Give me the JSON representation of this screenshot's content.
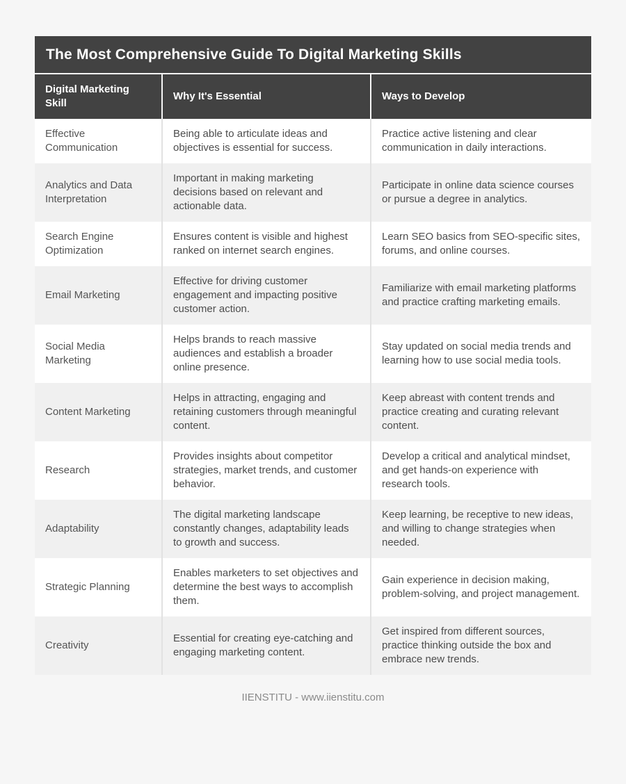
{
  "title": "The Most Comprehensive Guide To Digital Marketing Skills",
  "columns": [
    "Digital Marketing Skill",
    "Why It's Essential",
    "Ways to Develop"
  ],
  "rows": [
    {
      "skill": "Effective Communication",
      "essential": "Being able to articulate ideas and objectives is essential for success.",
      "develop": "Practice active listening and clear communication in daily interactions."
    },
    {
      "skill": "Analytics and Data Interpretation",
      "essential": "Important in making marketing decisions based on relevant and actionable data.",
      "develop": "Participate in online data science courses or pursue a degree in analytics."
    },
    {
      "skill": "Search Engine Optimization",
      "essential": "Ensures content is visible and highest ranked on internet search engines.",
      "develop": "Learn SEO basics from SEO-specific sites, forums, and online courses."
    },
    {
      "skill": "Email Marketing",
      "essential": "Effective for driving customer engagement and impacting positive customer action.",
      "develop": "Familiarize with email marketing platforms and practice crafting marketing emails."
    },
    {
      "skill": "Social Media Marketing",
      "essential": "Helps brands to reach massive audiences and establish a broader online presence.",
      "develop": "Stay updated on social media trends and learning how to use social media tools."
    },
    {
      "skill": "Content Marketing",
      "essential": "Helps in attracting, engaging and retaining customers through meaningful content.",
      "develop": "Keep abreast with content trends and practice creating and curating relevant content."
    },
    {
      "skill": "Research",
      "essential": "Provides insights about competitor strategies, market trends, and customer behavior.",
      "develop": "Develop a critical and analytical mindset, and get hands-on experience with research tools."
    },
    {
      "skill": "Adaptability",
      "essential": "The digital marketing landscape constantly changes, adaptability leads to growth and success.",
      "develop": "Keep learning, be receptive to new ideas, and willing to change strategies when needed."
    },
    {
      "skill": "Strategic Planning",
      "essential": "Enables marketers to set objectives and determine the best ways to accomplish them.",
      "develop": "Gain experience in decision making, problem-solving, and project management."
    },
    {
      "skill": "Creativity",
      "essential": "Essential for creating eye-catching and engaging marketing content.",
      "develop": "Get inspired from different sources, practice thinking outside the box and embrace new trends."
    }
  ],
  "footer": "IIENSTITU - www.iienstitu.com",
  "colors": {
    "page_background": "#f6f6f6",
    "header_background": "#424242",
    "header_text": "#ffffff",
    "row_alt_background": "#f0f0f0",
    "body_text": "#4d4d4d",
    "column_divider": "#e2e2e2",
    "footer_text": "#8a8a8a"
  }
}
